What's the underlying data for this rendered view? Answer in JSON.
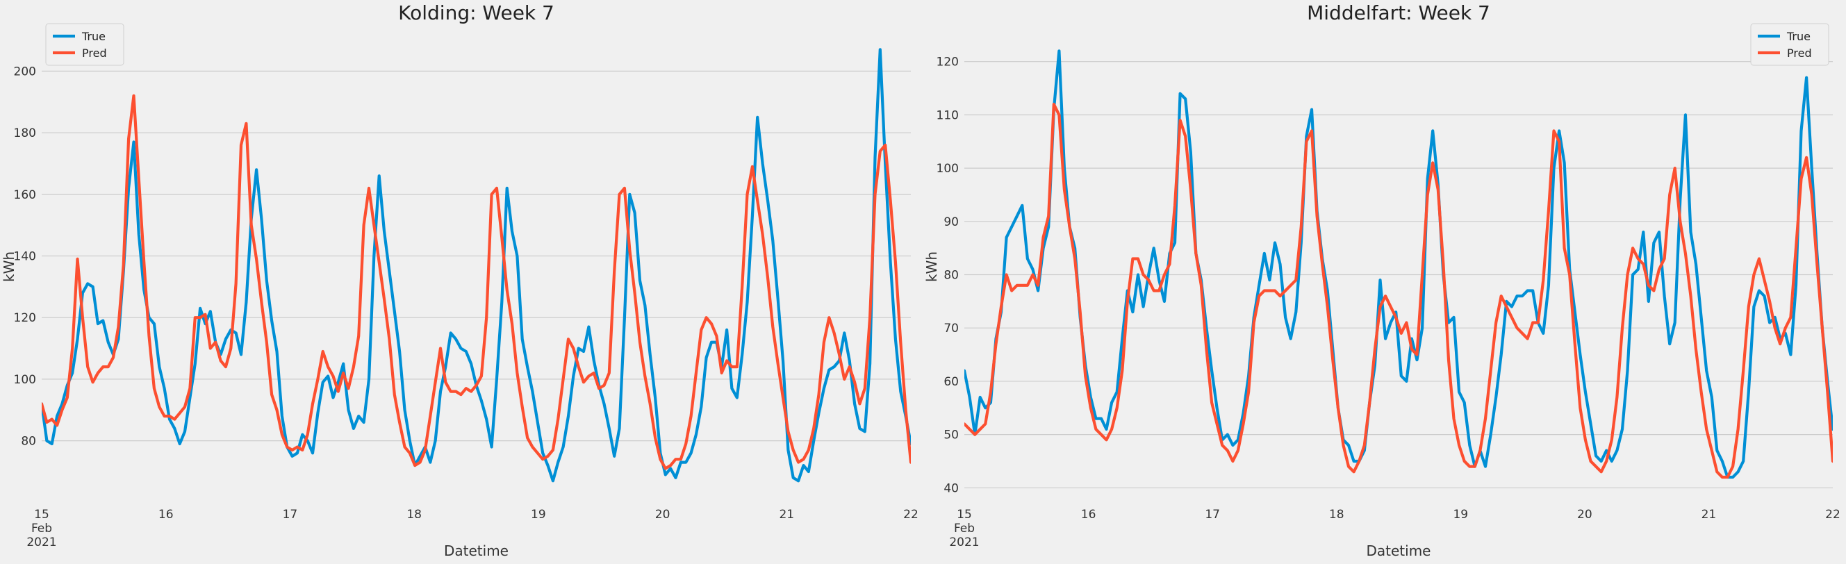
{
  "chart_data": [
    {
      "type": "line",
      "title": "Kolding: Week 7",
      "xlabel": "Datetime",
      "ylabel": "kWh",
      "x_start": "2021-02-15 00:00",
      "x_end": "2021-02-22 00:00",
      "xlim": [
        "2021-02-15",
        "2021-02-22"
      ],
      "ylim": [
        63,
        210
      ],
      "yticks": [
        80,
        100,
        120,
        140,
        160,
        180,
        200
      ],
      "xticks": [
        "15",
        "16",
        "17",
        "18",
        "19",
        "20",
        "21",
        "22"
      ],
      "xtick_sublabels": [
        "Feb",
        "2021"
      ],
      "grid": "horizontal",
      "legend_position": "top-left",
      "sample_interval_hours": 3,
      "colors": {
        "True": "#008fd5",
        "Pred": "#fc4f30"
      },
      "series": [
        {
          "name": "True",
          "values": [
            92,
            80,
            79,
            88,
            92,
            98,
            102,
            113,
            128,
            131,
            130,
            118,
            119,
            112,
            108,
            113,
            135,
            162,
            177,
            147,
            129,
            120,
            118,
            104,
            97,
            87,
            84,
            79,
            83,
            94,
            105,
            123,
            118,
            122,
            112,
            108,
            113,
            116,
            115,
            108,
            125,
            152,
            168,
            152,
            132,
            119,
            109,
            88,
            78,
            75,
            76,
            82,
            80,
            76,
            89,
            99,
            101,
            94,
            99,
            105,
            90,
            84,
            88,
            86,
            100,
            140,
            166,
            148,
            135,
            122,
            109,
            90,
            80,
            72,
            75,
            78,
            73,
            80,
            96,
            104,
            115,
            113,
            110,
            109,
            105,
            98,
            93,
            87,
            78,
            100,
            125,
            162,
            148,
            140,
            113,
            104,
            96,
            86,
            76,
            72,
            67,
            73,
            78,
            88,
            101,
            110,
            109,
            117,
            106,
            98,
            92,
            84,
            75,
            84,
            120,
            160,
            154,
            132,
            124,
            108,
            94,
            76,
            69,
            71,
            68,
            73,
            73,
            76,
            82,
            91,
            107,
            112,
            112,
            104,
            116,
            97,
            94,
            108,
            125,
            153,
            185,
            170,
            158,
            145,
            126,
            106,
            77,
            68,
            67,
            72,
            70,
            80,
            89,
            97,
            103,
            104,
            106,
            115,
            106,
            92,
            84,
            83,
            105,
            172,
            207,
            170,
            138,
            113,
            96,
            88,
            79
          ]
        },
        {
          "name": "Pred",
          "values": [
            92,
            86,
            87,
            85,
            90,
            94,
            110,
            139,
            120,
            104,
            99,
            102,
            104,
            104,
            107,
            117,
            137,
            178,
            192,
            165,
            138,
            114,
            97,
            91,
            88,
            88,
            87,
            89,
            91,
            97,
            120,
            120,
            121,
            110,
            112,
            106,
            104,
            110,
            131,
            176,
            183,
            150,
            139,
            125,
            112,
            95,
            90,
            82,
            78,
            77,
            78,
            77,
            82,
            92,
            100,
            109,
            104,
            101,
            96,
            102,
            97,
            104,
            114,
            150,
            162,
            150,
            138,
            126,
            113,
            95,
            86,
            78,
            76,
            72,
            73,
            77,
            88,
            99,
            110,
            99,
            96,
            96,
            95,
            97,
            96,
            98,
            101,
            120,
            160,
            162,
            146,
            129,
            118,
            102,
            91,
            81,
            78,
            76,
            74,
            75,
            77,
            87,
            100,
            113,
            110,
            104,
            99,
            101,
            102,
            97,
            98,
            102,
            135,
            160,
            162,
            142,
            128,
            112,
            101,
            92,
            81,
            74,
            71,
            72,
            74,
            74,
            79,
            88,
            102,
            116,
            120,
            118,
            114,
            102,
            106,
            104,
            104,
            130,
            160,
            169,
            158,
            147,
            133,
            117,
            105,
            94,
            83,
            77,
            73,
            74,
            77,
            84,
            95,
            112,
            120,
            115,
            108,
            100,
            104,
            99,
            92,
            97,
            120,
            160,
            174,
            176,
            158,
            138,
            112,
            90,
            73
          ]
        }
      ]
    },
    {
      "type": "line",
      "title": "Middelfart: Week 7",
      "xlabel": "Datetime",
      "ylabel": "kWh",
      "x_start": "2021-02-15 00:00",
      "x_end": "2021-02-22 00:00",
      "xlim": [
        "2021-02-15",
        "2021-02-22"
      ],
      "ylim": [
        39,
        124
      ],
      "yticks": [
        40,
        50,
        60,
        70,
        80,
        90,
        100,
        110,
        120
      ],
      "xticks": [
        "15",
        "16",
        "17",
        "18",
        "19",
        "20",
        "21",
        "22"
      ],
      "xtick_sublabels": [
        "Feb",
        "2021"
      ],
      "grid": "horizontal",
      "legend_position": "top-right",
      "sample_interval_hours": 3,
      "colors": {
        "True": "#008fd5",
        "Pred": "#fc4f30"
      },
      "series": [
        {
          "name": "True",
          "values": [
            62,
            57,
            50,
            57,
            55,
            56,
            68,
            73,
            87,
            89,
            91,
            93,
            83,
            81,
            77,
            85,
            89,
            111,
            122,
            100,
            89,
            85,
            72,
            63,
            57,
            53,
            53,
            51,
            56,
            58,
            68,
            77,
            73,
            80,
            74,
            80,
            85,
            79,
            75,
            84,
            86,
            114,
            113,
            103,
            84,
            79,
            70,
            62,
            55,
            49,
            50,
            48,
            49,
            54,
            61,
            72,
            78,
            84,
            79,
            86,
            82,
            72,
            68,
            73,
            86,
            106,
            111,
            92,
            83,
            77,
            66,
            55,
            49,
            48,
            45,
            45,
            47,
            56,
            63,
            79,
            68,
            71,
            73,
            61,
            60,
            68,
            64,
            70,
            98,
            107,
            97,
            80,
            71,
            72,
            58,
            56,
            48,
            44,
            47,
            44,
            50,
            57,
            65,
            75,
            74,
            76,
            76,
            77,
            77,
            71,
            69,
            78,
            100,
            107,
            101,
            81,
            73,
            65,
            58,
            52,
            46,
            45,
            47,
            45,
            47,
            51,
            62,
            80,
            81,
            88,
            75,
            86,
            88,
            76,
            67,
            71,
            94,
            110,
            88,
            82,
            72,
            62,
            57,
            47,
            45,
            42,
            42,
            43,
            45,
            58,
            74,
            77,
            76,
            71,
            72,
            68,
            69,
            65,
            78,
            107,
            117,
            100,
            84,
            70,
            60,
            51
          ]
        },
        {
          "name": "Pred",
          "values": [
            52,
            51,
            50,
            51,
            52,
            58,
            67,
            74,
            80,
            77,
            78,
            78,
            78,
            80,
            78,
            87,
            91,
            112,
            110,
            96,
            89,
            83,
            73,
            61,
            55,
            51,
            50,
            49,
            51,
            55,
            62,
            75,
            83,
            83,
            80,
            79,
            77,
            77,
            80,
            82,
            93,
            109,
            106,
            96,
            84,
            78,
            66,
            56,
            52,
            48,
            47,
            45,
            47,
            52,
            58,
            71,
            76,
            77,
            77,
            77,
            76,
            77,
            78,
            79,
            89,
            105,
            107,
            91,
            82,
            74,
            64,
            55,
            48,
            44,
            43,
            45,
            48,
            56,
            66,
            74,
            76,
            74,
            72,
            69,
            71,
            66,
            65,
            80,
            95,
            101,
            96,
            82,
            64,
            53,
            48,
            45,
            44,
            44,
            47,
            53,
            62,
            71,
            76,
            74,
            72,
            70,
            69,
            68,
            71,
            71,
            79,
            92,
            107,
            105,
            85,
            80,
            67,
            55,
            49,
            45,
            44,
            43,
            45,
            49,
            57,
            70,
            80,
            85,
            83,
            82,
            78,
            77,
            81,
            83,
            95,
            100,
            90,
            84,
            76,
            66,
            58,
            51,
            47,
            43,
            42,
            42,
            44,
            51,
            62,
            74,
            80,
            83,
            79,
            75,
            70,
            67,
            70,
            72,
            85,
            98,
            102,
            95,
            82,
            70,
            58,
            45
          ]
        }
      ]
    }
  ]
}
